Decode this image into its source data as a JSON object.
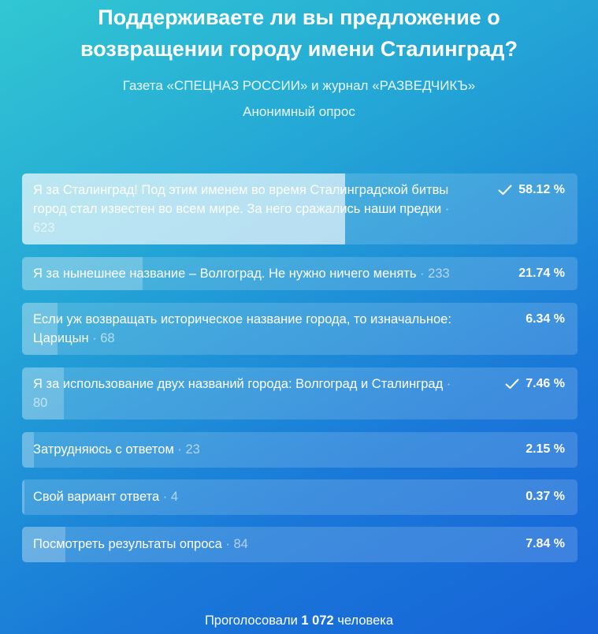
{
  "poll": {
    "title": "Поддерживаете ли вы предложение о возвращении городу имени Сталинград?",
    "subtitle": "Газета «СПЕЦНАЗ РОССИИ» и журнал «РАЗВЕДЧИКЪ»",
    "type": "Анонимный опрос",
    "options": [
      {
        "label": "Я за Сталинград! Под этим именем во время Сталинградской битвы город стал известен во всем мире. За него сражались наши предки",
        "count": "623",
        "percent": "58.12 %",
        "share": 0.5812,
        "voted": true
      },
      {
        "label": "Я за нынешнее название – Волгоград. Не нужно ничего менять",
        "count": "233",
        "percent": "21.74 %",
        "share": 0.2174,
        "voted": false
      },
      {
        "label": "Если уж возвращать историческое название города, то изначальное: Царицын",
        "count": "68",
        "percent": "6.34 %",
        "share": 0.0634,
        "voted": false
      },
      {
        "label": "Я за использование двух названий города: Волгоград и Сталинград",
        "count": "80",
        "percent": "7.46 %",
        "share": 0.0746,
        "voted": true
      },
      {
        "label": "Затрудняюсь с ответом",
        "count": "23",
        "percent": "2.15 %",
        "share": 0.0215,
        "voted": false
      },
      {
        "label": "Свой вариант ответа",
        "count": "4",
        "percent": "0.37 %",
        "share": 0.0037,
        "voted": false
      },
      {
        "label": "Посмотреть результаты опроса",
        "count": "84",
        "percent": "7.84 %",
        "share": 0.0784,
        "voted": false
      }
    ],
    "total_prefix": "Проголосовали",
    "total_count": "1 072",
    "total_suffix": "человека",
    "separator": " · "
  },
  "colors": {
    "background_start": "#31c7d2",
    "background_end": "#1663d8"
  },
  "icons": {
    "voted": "check-icon"
  }
}
